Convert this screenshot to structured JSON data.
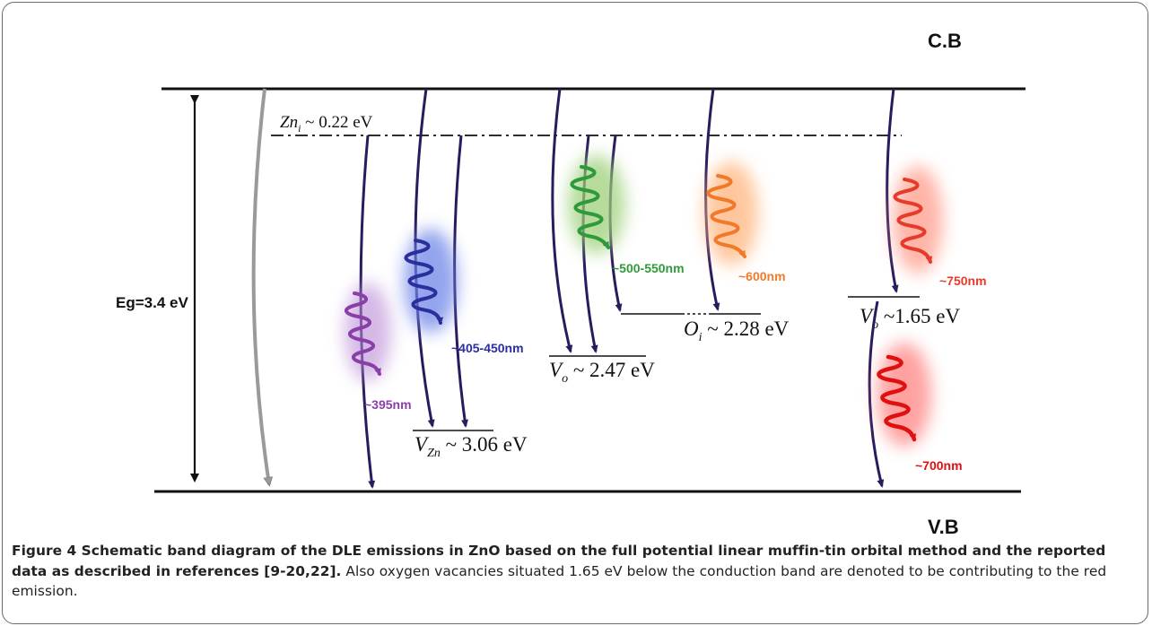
{
  "diagram": {
    "band_labels": {
      "conduction": "C.B",
      "valence": "V.B"
    },
    "gap_label": "Eg=3.4 eV",
    "levels": {
      "zn_i": {
        "symbol": "Zn",
        "sub": "i",
        "energy": " ~ 0.22 eV"
      },
      "v_zn": {
        "symbol": "V",
        "sub": "Zn",
        "energy": " ~ 3.06 eV"
      },
      "v_o_1": {
        "symbol": "V",
        "sub": "o",
        "energy": " ~ 2.47 eV"
      },
      "o_i": {
        "symbol": "O",
        "sub": "i",
        "energy": " ~ 2.28 eV"
      },
      "v_o_2": {
        "symbol": "V",
        "sub": "o",
        "energy": " ~1.65 eV"
      }
    },
    "emissions": [
      {
        "label": "~395nm",
        "color": "#8a3fa8",
        "glow": "#b98ad6"
      },
      {
        "label": "~405-450nm",
        "color": "#2b2f9e",
        "glow": "#6f86e8"
      },
      {
        "label": "~500-550nm",
        "color": "#2e9a3a",
        "glow": "#9ed07a"
      },
      {
        "label": "~600nm",
        "color": "#f07a2a",
        "glow": "#ffb985"
      },
      {
        "label": "~750nm",
        "color": "#e53b2a",
        "glow": "#ff9c8a"
      },
      {
        "label": "~700nm",
        "color": "#e01010",
        "glow": "#ff8a8a"
      }
    ],
    "arrow_color": "#2a1a5e"
  },
  "caption": {
    "lead": "Figure 4 Schematic band diagram of the DLE emissions in ZnO based on the full potential linear muffin-tin orbital method and the reported data as described in references [9-20,22].",
    "body": " Also oxygen vacancies situated 1.65 eV below the conduction band are denoted to be contributing to the red emission."
  }
}
